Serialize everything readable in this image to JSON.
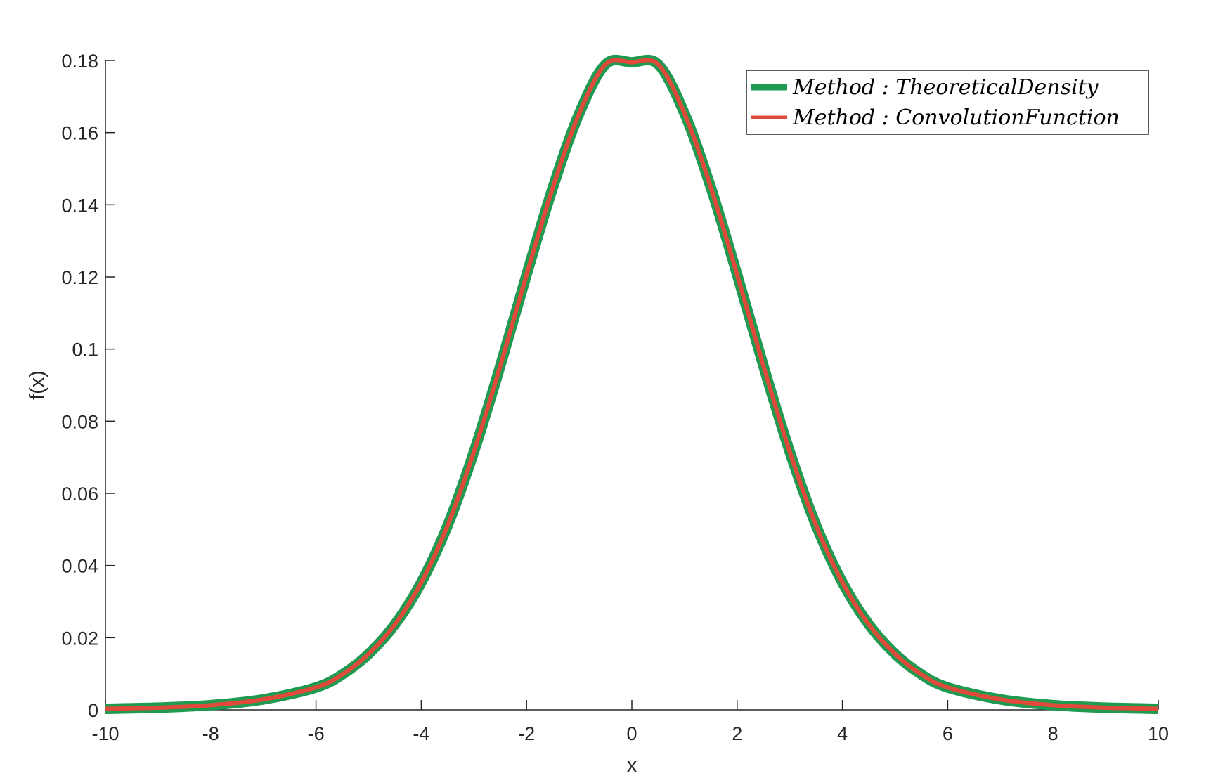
{
  "chart_data": {
    "type": "line",
    "title": "",
    "xlabel": "x",
    "ylabel": "f(x)",
    "xlim": [
      -10,
      10
    ],
    "ylim": [
      0,
      0.18
    ],
    "xticks": [
      "-10",
      "-8",
      "-6",
      "-4",
      "-2",
      "0",
      "2",
      "4",
      "6",
      "8",
      "10"
    ],
    "yticks": [
      "0",
      "0.02",
      "0.04",
      "0.06",
      "0.08",
      "0.1",
      "0.12",
      "0.14",
      "0.16",
      "0.18"
    ],
    "grid": false,
    "legend_position": "top-right",
    "x": [
      -10,
      -9,
      -8,
      -7,
      -6,
      -5.5,
      -5,
      -4.5,
      -4,
      -3.5,
      -3,
      -2.5,
      -2,
      -1.5,
      -1,
      -0.5,
      0,
      0.5,
      1,
      1.5,
      2,
      2.5,
      3,
      3.5,
      4,
      4.5,
      5,
      5.5,
      6,
      7,
      8,
      9,
      10
    ],
    "series": [
      {
        "name": "Method : TheoreticalDensity",
        "color": "#1f9a50",
        "values": [
          0.0003,
          0.0006,
          0.0013,
          0.0029,
          0.0062,
          0.0098,
          0.0155,
          0.0237,
          0.0353,
          0.0511,
          0.0715,
          0.0953,
          0.1206,
          0.1448,
          0.1653,
          0.1789,
          0.1795,
          0.1789,
          0.1653,
          0.1448,
          0.1206,
          0.0953,
          0.0715,
          0.0511,
          0.0353,
          0.0237,
          0.0155,
          0.0098,
          0.0062,
          0.0029,
          0.0013,
          0.0006,
          0.0003
        ]
      },
      {
        "name": "Method : ConvolutionFunction",
        "color": "#e04a3a",
        "values": [
          0.0003,
          0.0006,
          0.0013,
          0.0029,
          0.0062,
          0.0098,
          0.0155,
          0.0237,
          0.0353,
          0.0511,
          0.0715,
          0.0953,
          0.1206,
          0.1448,
          0.1653,
          0.1789,
          0.1795,
          0.1789,
          0.1653,
          0.1448,
          0.1206,
          0.0953,
          0.0715,
          0.0511,
          0.0353,
          0.0237,
          0.0155,
          0.0098,
          0.0062,
          0.0029,
          0.0013,
          0.0006,
          0.0003
        ]
      }
    ],
    "legend": {
      "items": [
        {
          "label": "Method : TheoreticalDensity",
          "color": "#1f9a50"
        },
        {
          "label": "Method : ConvolutionFunction",
          "color": "#e04a3a"
        }
      ]
    }
  }
}
